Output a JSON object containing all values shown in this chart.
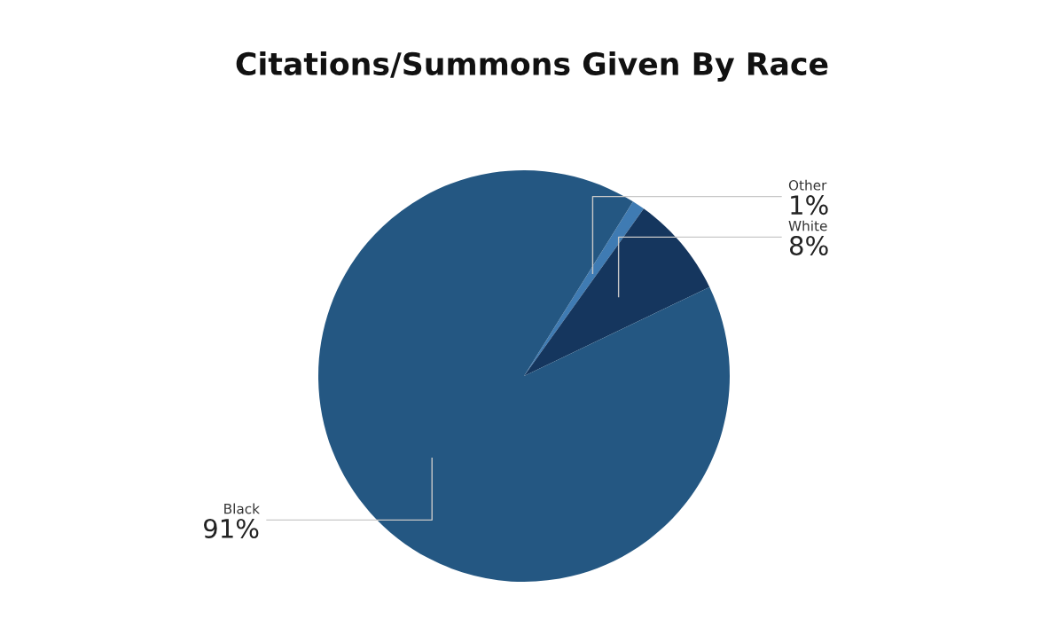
{
  "chart_data": {
    "type": "pie",
    "title": "Citations/Summons Given By Race",
    "categories": [
      "Other",
      "White",
      "Black"
    ],
    "values": [
      1,
      8,
      91
    ],
    "value_labels": [
      "1%",
      "8%",
      "91%"
    ],
    "colors": [
      "#3f7bb3",
      "#15365e",
      "#245782"
    ]
  }
}
